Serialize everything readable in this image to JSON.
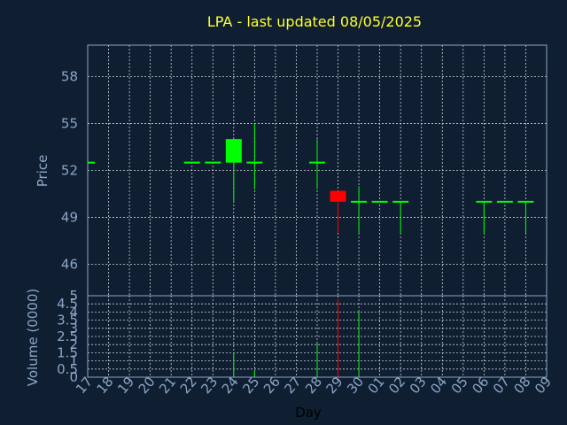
{
  "colors": {
    "background": "#0f1e30",
    "frame": "#8ca6c8",
    "grid": "#c8d2e0",
    "title": "#ffff33",
    "label": "#8ca6c8",
    "up": "#00ff00",
    "down": "#ff0000"
  },
  "chart_data": [
    {
      "type": "candlestick",
      "title": "LPA - last updated 08/05/2025",
      "ylabel": "Price",
      "ylim": [
        44,
        60
      ],
      "yticks": [
        "46",
        "49",
        "52",
        "55",
        "58"
      ],
      "grid": true,
      "x": [
        "17",
        "18",
        "19",
        "20",
        "21",
        "22",
        "23",
        "24",
        "25",
        "26",
        "27",
        "28",
        "29",
        "30",
        "01",
        "02",
        "03",
        "04",
        "05",
        "06",
        "07",
        "08",
        "09"
      ],
      "candles": [
        {
          "x": "17",
          "open": 52.5,
          "high": 52.5,
          "low": 52.5,
          "close": 52.5
        },
        {
          "x": "22",
          "open": 52.5,
          "high": 52.5,
          "low": 52.5,
          "close": 52.5
        },
        {
          "x": "23",
          "open": 52.5,
          "high": 52.5,
          "low": 52.5,
          "close": 52.5
        },
        {
          "x": "24",
          "open": 52.5,
          "high": 54.0,
          "low": 50.0,
          "close": 54.0
        },
        {
          "x": "25",
          "open": 52.5,
          "high": 55.0,
          "low": 50.8,
          "close": 52.5
        },
        {
          "x": "28",
          "open": 52.5,
          "high": 54.0,
          "low": 50.8,
          "close": 52.5
        },
        {
          "x": "29",
          "open": 50.7,
          "high": 50.7,
          "low": 48.0,
          "close": 50.0
        },
        {
          "x": "30",
          "open": 50.0,
          "high": 51.0,
          "low": 48.0,
          "close": 50.0
        },
        {
          "x": "01",
          "open": 50.0,
          "high": 50.0,
          "low": 50.0,
          "close": 50.0
        },
        {
          "x": "02",
          "open": 50.0,
          "high": 50.0,
          "low": 48.0,
          "close": 50.0
        },
        {
          "x": "06",
          "open": 50.0,
          "high": 50.0,
          "low": 48.0,
          "close": 50.0
        },
        {
          "x": "07",
          "open": 50.0,
          "high": 50.0,
          "low": 50.0,
          "close": 50.0
        },
        {
          "x": "08",
          "open": 50.0,
          "high": 50.0,
          "low": 48.0,
          "close": 50.0
        }
      ]
    },
    {
      "type": "bar",
      "ylabel": "Volume (0000)",
      "xlabel": "Day",
      "ylim": [
        0,
        5
      ],
      "yticks": [
        "0",
        "0.5",
        "1",
        "1.5",
        "2",
        "2.5",
        "3",
        "3.5",
        "4",
        "4.5",
        "5"
      ],
      "grid": true,
      "x": [
        "17",
        "18",
        "19",
        "20",
        "21",
        "22",
        "23",
        "24",
        "25",
        "26",
        "27",
        "28",
        "29",
        "30",
        "01",
        "02",
        "03",
        "04",
        "05",
        "06",
        "07",
        "08",
        "09"
      ],
      "bars": [
        {
          "x": "24",
          "value": 1.5,
          "direction": "up"
        },
        {
          "x": "25",
          "value": 0.4,
          "direction": "up"
        },
        {
          "x": "28",
          "value": 2.1,
          "direction": "up"
        },
        {
          "x": "29",
          "value": 4.8,
          "direction": "down"
        },
        {
          "x": "30",
          "value": 4.0,
          "direction": "up"
        },
        {
          "x": "02",
          "value": 0.05,
          "direction": "up"
        }
      ]
    }
  ]
}
